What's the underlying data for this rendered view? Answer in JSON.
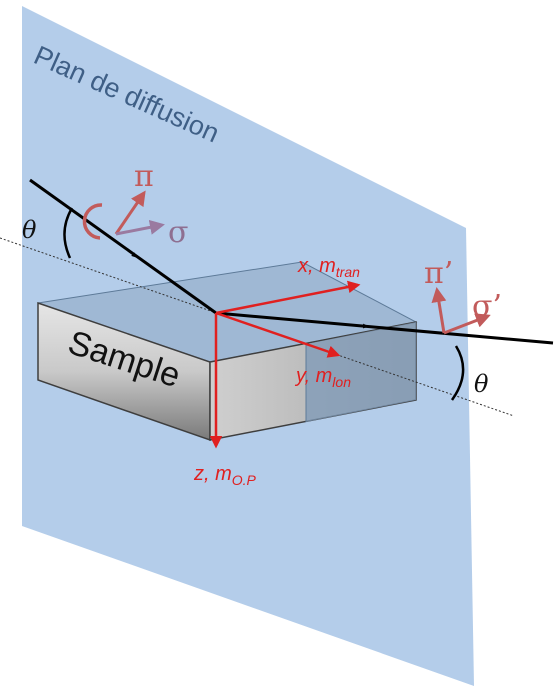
{
  "plane": {
    "label": "Plan de diffusion"
  },
  "sample": {
    "label": "Sample"
  },
  "axes": {
    "x": {
      "main": "x, m",
      "sub": "tran"
    },
    "y": {
      "main": "y, m",
      "sub": "lon"
    },
    "z": {
      "main": "z, m",
      "sub": "O.P"
    }
  },
  "polarization": {
    "incident_pi": "π",
    "incident_sigma": "σ",
    "scattered_pi": "π’",
    "scattered_sigma": "σ’"
  },
  "angles": {
    "incident": "θ",
    "scattered": "θ"
  },
  "icons": [
    "circular-polarization-icon"
  ],
  "colors": {
    "plane": "#b4cdea",
    "axes": "#e02020",
    "polarization": "#c25b5b",
    "sigma_incident": "#9a7aa0",
    "beam": "#000000"
  }
}
